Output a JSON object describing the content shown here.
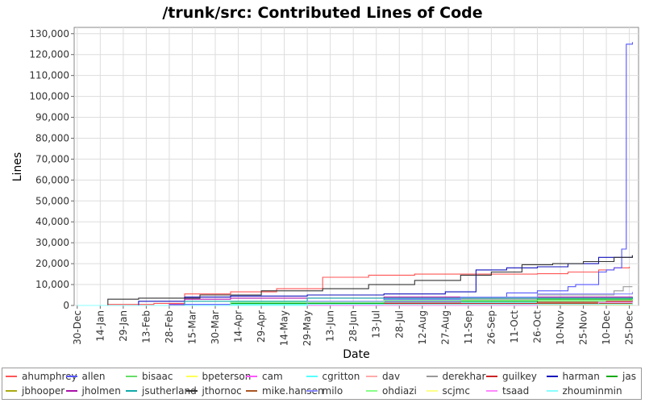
{
  "chart_data": {
    "type": "line",
    "title": "/trunk/src: Contributed Lines of Code",
    "xlabel": "Date",
    "ylabel": "Lines",
    "ylim": [
      0,
      133000
    ],
    "y_ticks": [
      "0",
      "10,000",
      "20,000",
      "30,000",
      "40,000",
      "50,000",
      "60,000",
      "70,000",
      "80,000",
      "90,000",
      "100,000",
      "110,000",
      "120,000",
      "130,000"
    ],
    "y_tick_values": [
      0,
      10000,
      20000,
      30000,
      40000,
      50000,
      60000,
      70000,
      80000,
      90000,
      100000,
      110000,
      120000,
      130000
    ],
    "x_ticks": [
      "30-Dec",
      "14-Jan",
      "29-Jan",
      "13-Feb",
      "28-Feb",
      "15-Mar",
      "30-Mar",
      "14-Apr",
      "29-Apr",
      "14-May",
      "29-May",
      "13-Jun",
      "28-Jun",
      "13-Jul",
      "28-Jul",
      "12-Aug",
      "27-Aug",
      "11-Sep",
      "26-Sep",
      "11-Oct",
      "26-Oct",
      "10-Nov",
      "25-Nov",
      "10-Dec",
      "25-Dec"
    ],
    "x_range_days": [
      -2,
      366
    ],
    "grid": true,
    "legend_position": "bottom",
    "series": [
      {
        "name": "ahumphrey",
        "color": "#ff5555",
        "x": [
          0,
          20,
          50,
          70,
          100,
          130,
          160,
          190,
          220,
          260,
          300,
          320,
          340,
          350,
          360
        ],
        "y": [
          0,
          500,
          1000,
          5500,
          6500,
          8000,
          13500,
          14500,
          15000,
          15000,
          15200,
          16000,
          17000,
          18000,
          18500
        ]
      },
      {
        "name": "allen",
        "color": "#5555ff",
        "x": [
          0,
          60,
          100,
          150,
          200,
          250,
          280,
          300,
          320,
          325,
          340,
          345,
          350,
          355,
          358,
          362
        ],
        "y": [
          0,
          500,
          1000,
          1500,
          3000,
          4000,
          6000,
          7000,
          9000,
          10000,
          16000,
          17000,
          18000,
          27000,
          125000,
          126000
        ]
      },
      {
        "name": "bisaac",
        "color": "#66dd66",
        "x": [
          0,
          100,
          200,
          300,
          362
        ],
        "y": [
          0,
          500,
          1000,
          2000,
          3000
        ]
      },
      {
        "name": "bpeterson",
        "color": "#ffff55",
        "x": [
          0,
          150,
          362
        ],
        "y": [
          0,
          200,
          400
        ]
      },
      {
        "name": "cam",
        "color": "#ff55ff",
        "x": [
          0,
          150,
          362
        ],
        "y": [
          0,
          300,
          600
        ]
      },
      {
        "name": "cgritton",
        "color": "#55ffff",
        "x": [
          0,
          100,
          200,
          362
        ],
        "y": [
          0,
          500,
          1500,
          2500
        ]
      },
      {
        "name": "dav",
        "color": "#ffaaaa",
        "x": [
          0,
          150,
          362
        ],
        "y": [
          0,
          400,
          800
        ]
      },
      {
        "name": "derekhar",
        "color": "#999999",
        "x": [
          0,
          150,
          250,
          300,
          350,
          356,
          362
        ],
        "y": [
          0,
          1500,
          3000,
          5000,
          7000,
          9000,
          9000
        ]
      },
      {
        "name": "guilkey",
        "color": "#cc2222",
        "x": [
          0,
          200,
          300,
          345,
          362
        ],
        "y": [
          0,
          1000,
          1500,
          2000,
          2500
        ]
      },
      {
        "name": "harman",
        "color": "#1111bb",
        "x": [
          0,
          40,
          70,
          100,
          150,
          200,
          240,
          260,
          280,
          300,
          320,
          340,
          362
        ],
        "y": [
          0,
          2000,
          4000,
          4500,
          5000,
          5500,
          6500,
          17000,
          18000,
          18500,
          20000,
          23000,
          24000
        ]
      },
      {
        "name": "jas",
        "color": "#11aa11",
        "x": [
          0,
          100,
          200,
          300,
          362
        ],
        "y": [
          0,
          1000,
          2000,
          3000,
          3500
        ]
      },
      {
        "name": "jbhooper",
        "color": "#aaaa11",
        "x": [
          0,
          200,
          362
        ],
        "y": [
          0,
          300,
          600
        ]
      },
      {
        "name": "jholmen",
        "color": "#aa11aa",
        "x": [
          0,
          60,
          70,
          100,
          200,
          362
        ],
        "y": [
          0,
          300,
          3000,
          3500,
          4000,
          4200
        ]
      },
      {
        "name": "jsutherland",
        "color": "#11aaaa",
        "x": [
          0,
          70,
          150,
          362
        ],
        "y": [
          0,
          2000,
          3500,
          4000
        ]
      },
      {
        "name": "jthornoc",
        "color": "#333333",
        "x": [
          0,
          20,
          40,
          80,
          120,
          160,
          190,
          220,
          250,
          270,
          290,
          310,
          330,
          350,
          362
        ],
        "y": [
          0,
          3000,
          3500,
          5000,
          7000,
          8000,
          10000,
          12000,
          14500,
          16000,
          19500,
          20000,
          21000,
          23000,
          24000
        ]
      },
      {
        "name": "mike.hansen",
        "color": "#aa5522",
        "x": [
          0,
          200,
          300,
          362
        ],
        "y": [
          0,
          500,
          1000,
          1200
        ]
      },
      {
        "name": "milo",
        "color": "#8888ff",
        "x": [
          0,
          150,
          250,
          300,
          362
        ],
        "y": [
          0,
          2000,
          4000,
          5500,
          6500
        ]
      },
      {
        "name": "ohdiazi",
        "color": "#88ff88",
        "x": [
          0,
          100,
          200,
          362
        ],
        "y": [
          0,
          1500,
          2500,
          3000
        ]
      },
      {
        "name": "scjmc",
        "color": "#ffff88",
        "x": [
          0,
          200,
          362
        ],
        "y": [
          0,
          300,
          600
        ]
      },
      {
        "name": "tsaad",
        "color": "#ff88ff",
        "x": [
          0,
          300,
          340,
          362
        ],
        "y": [
          0,
          500,
          1500,
          2000
        ]
      },
      {
        "name": "zhouminmin",
        "color": "#88ffff",
        "x": [
          0,
          150,
          362
        ],
        "y": [
          0,
          500,
          1000
        ]
      }
    ]
  }
}
